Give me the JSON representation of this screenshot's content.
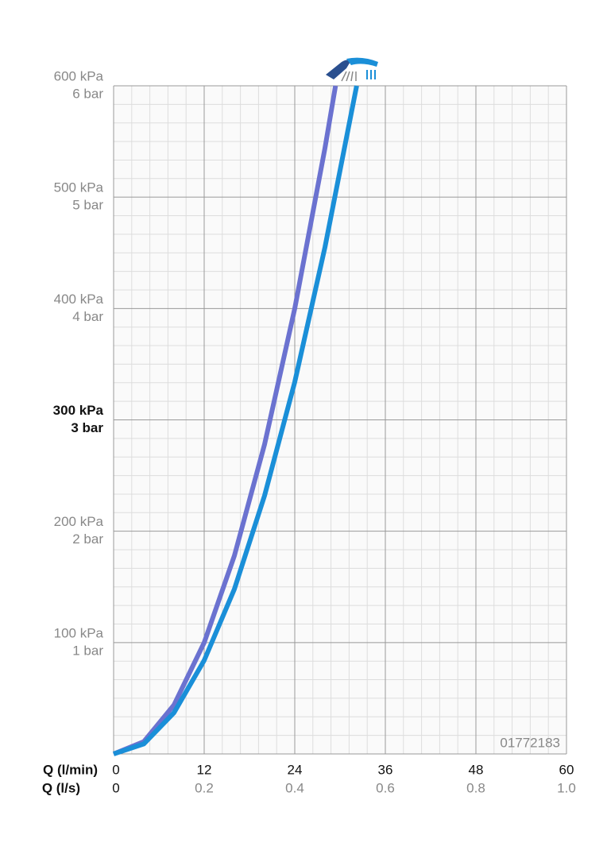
{
  "chart_data": {
    "type": "line",
    "code": "01772183",
    "xlabel": "Q (l/min)",
    "x2label": "Q (l/s)",
    "xlim": [
      0,
      60
    ],
    "xticks": [
      0,
      12,
      24,
      36,
      48,
      60
    ],
    "x2lim": [
      0,
      1
    ],
    "x2ticks": [
      0,
      0.2,
      0.4,
      0.6,
      0.8,
      {
        "value": 1.0,
        "label": "1.0"
      }
    ],
    "ylim": [
      0,
      600
    ],
    "yticks": [
      {
        "value": 100,
        "label": "100 kPa"
      },
      {
        "value": 200,
        "label": "200 kPa"
      },
      {
        "value": 300,
        "label": "300 kPa"
      },
      {
        "value": 400,
        "label": "400 kPa"
      },
      {
        "value": 500,
        "label": "500 kPa"
      },
      {
        "value": 600,
        "label": "600 kPa"
      }
    ],
    "y2lim": [
      0,
      6
    ],
    "y2ticks": [
      {
        "value": 1,
        "label": "1 bar"
      },
      {
        "value": 2,
        "label": "2 bar"
      },
      {
        "value": 3,
        "label": "3 bar"
      },
      {
        "value": 4,
        "label": "4 bar"
      },
      {
        "value": 5,
        "label": "5 bar"
      },
      {
        "value": 6,
        "label": "6 bar"
      }
    ],
    "bold_tick_index": 2,
    "grid": true,
    "minor_x_divisions": 5,
    "minor_y_divisions": 6,
    "series": [
      {
        "color": "#6b72d0",
        "x": [
          0,
          4,
          8,
          12,
          16,
          20,
          24,
          28,
          29.4
        ],
        "values": [
          0,
          11,
          44,
          100,
          178,
          278,
          400,
          544,
          600
        ]
      },
      {
        "color": "#1a8fd8",
        "x": [
          0,
          4,
          8,
          12,
          16,
          20,
          24,
          28,
          32.2
        ],
        "values": [
          0,
          9,
          37,
          84,
          148,
          232,
          334,
          455,
          600
        ]
      }
    ]
  }
}
